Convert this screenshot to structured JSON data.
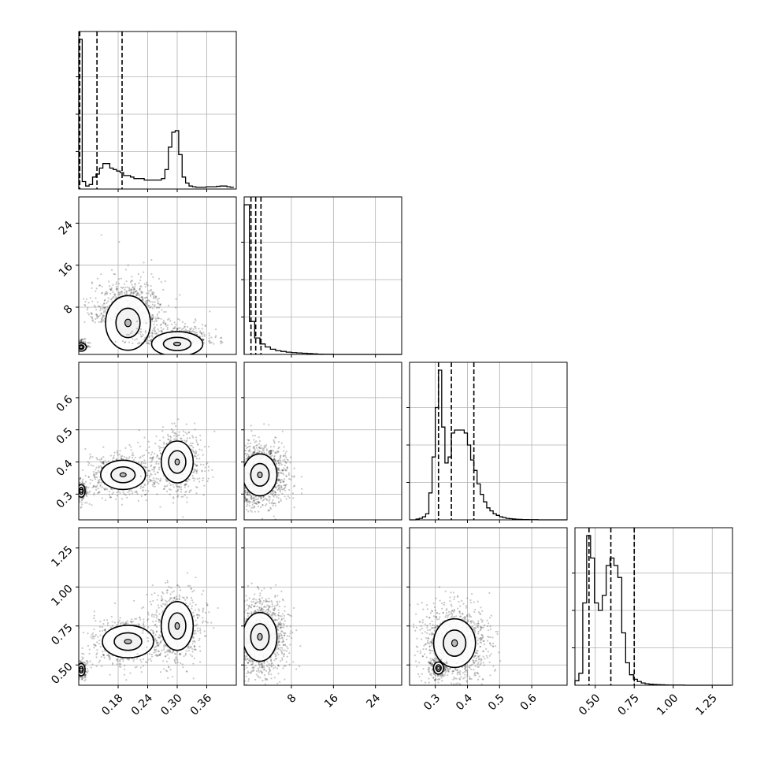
{
  "chart_data": {
    "type": "corner",
    "title": "",
    "grid": true,
    "parameters": [
      {
        "name": "",
        "range": [
          0.1,
          0.42
        ],
        "ticks": [
          0.18,
          0.24,
          0.3,
          0.36
        ],
        "tick_labels": [
          "0.18",
          "0.24",
          "0.30",
          "0.36"
        ],
        "quantiles": [
          0.102,
          0.137,
          0.188
        ]
      },
      {
        "name": "",
        "range": [
          -1,
          29
        ],
        "ticks": [
          8,
          16,
          24
        ],
        "tick_labels": [
          "8",
          "16",
          "24"
        ],
        "quantiles": [
          0.3,
          1.2,
          2.2
        ]
      },
      {
        "name": "",
        "range": [
          0.22,
          0.71
        ],
        "ticks": [
          0.3,
          0.4,
          0.5,
          0.6
        ],
        "tick_labels": [
          "0.3",
          "0.4",
          "0.5",
          "0.6"
        ],
        "quantiles": [
          0.31,
          0.35,
          0.42
        ]
      },
      {
        "name": "",
        "range": [
          0.37,
          1.38
        ],
        "ticks": [
          0.5,
          0.75,
          1.0,
          1.25
        ],
        "tick_labels": [
          "0.50",
          "0.75",
          "1.00",
          "1.25"
        ],
        "quantiles": [
          0.46,
          0.6,
          0.75
        ]
      }
    ],
    "histograms": [
      {
        "param": 0,
        "bin_edges": [
          0.1,
          0.107,
          0.114,
          0.121,
          0.128,
          0.135,
          0.142,
          0.149,
          0.156,
          0.163,
          0.17,
          0.177,
          0.184,
          0.191,
          0.198,
          0.205,
          0.212,
          0.219,
          0.226,
          0.233,
          0.24,
          0.247,
          0.254,
          0.261,
          0.268,
          0.275,
          0.282,
          0.289,
          0.296,
          0.303,
          0.31,
          0.317,
          0.324,
          0.331,
          0.338,
          0.345,
          0.352,
          0.359,
          0.366,
          0.373,
          0.38,
          0.387,
          0.394,
          0.401,
          0.408,
          0.415
        ],
        "counts": [
          1.0,
          0.05,
          0.02,
          0.03,
          0.08,
          0.1,
          0.14,
          0.17,
          0.17,
          0.14,
          0.13,
          0.12,
          0.11,
          0.09,
          0.09,
          0.08,
          0.07,
          0.07,
          0.07,
          0.06,
          0.06,
          0.06,
          0.06,
          0.06,
          0.07,
          0.13,
          0.28,
          0.38,
          0.39,
          0.23,
          0.08,
          0.04,
          0.02,
          0.015,
          0.012,
          0.012,
          0.012,
          0.015,
          0.015,
          0.015,
          0.018,
          0.02,
          0.02,
          0.015,
          0.012
        ]
      },
      {
        "param": 1,
        "bin_edges": [
          -1,
          0,
          1,
          2,
          3,
          4,
          5,
          6,
          7,
          8,
          9,
          10,
          11,
          12,
          13,
          14,
          15,
          16,
          17,
          18,
          19,
          20,
          21,
          22,
          23,
          24,
          25,
          26,
          27,
          28,
          29
        ],
        "counts": [
          1.0,
          0.22,
          0.11,
          0.07,
          0.05,
          0.035,
          0.025,
          0.02,
          0.015,
          0.012,
          0.01,
          0.008,
          0.006,
          0.004,
          0.002,
          0.001,
          0.001,
          0,
          0,
          0,
          0,
          0,
          0,
          0,
          0,
          0,
          0,
          0,
          0,
          0
        ]
      },
      {
        "param": 2,
        "bin_edges": [
          0.22,
          0.23,
          0.24,
          0.25,
          0.26,
          0.27,
          0.28,
          0.29,
          0.3,
          0.31,
          0.32,
          0.33,
          0.34,
          0.35,
          0.36,
          0.37,
          0.38,
          0.39,
          0.4,
          0.41,
          0.42,
          0.43,
          0.44,
          0.45,
          0.46,
          0.47,
          0.48,
          0.49,
          0.5,
          0.51,
          0.52,
          0.53,
          0.54,
          0.55,
          0.56,
          0.57,
          0.58,
          0.59,
          0.6,
          0.61,
          0.62,
          0.63,
          0.64,
          0.65,
          0.66,
          0.67,
          0.68,
          0.69,
          0.7,
          0.71
        ],
        "counts": [
          0,
          0,
          0.005,
          0.01,
          0.02,
          0.04,
          0.18,
          0.42,
          0.75,
          1.0,
          0.62,
          0.38,
          0.42,
          0.58,
          0.6,
          0.6,
          0.6,
          0.58,
          0.5,
          0.4,
          0.33,
          0.24,
          0.17,
          0.12,
          0.08,
          0.06,
          0.04,
          0.03,
          0.02,
          0.015,
          0.01,
          0.008,
          0.006,
          0.004,
          0.003,
          0.002,
          0.002,
          0.001,
          0.001,
          0.001,
          0,
          0,
          0,
          0,
          0,
          0,
          0,
          0,
          0
        ]
      },
      {
        "param": 3,
        "bin_edges": [
          0.37,
          0.395,
          0.42,
          0.445,
          0.47,
          0.495,
          0.52,
          0.545,
          0.57,
          0.595,
          0.62,
          0.645,
          0.67,
          0.695,
          0.72,
          0.745,
          0.77,
          0.795,
          0.82,
          0.845,
          0.87,
          0.895,
          0.92,
          0.945,
          0.97,
          0.995,
          1.02,
          1.045,
          1.07,
          1.095,
          1.12,
          1.145,
          1.17,
          1.195,
          1.22,
          1.245,
          1.27,
          1.295,
          1.32,
          1.345,
          1.37
        ],
        "counts": [
          0.03,
          0.08,
          0.55,
          1.0,
          0.85,
          0.55,
          0.5,
          0.6,
          0.8,
          0.85,
          0.8,
          0.72,
          0.35,
          0.15,
          0.07,
          0.04,
          0.025,
          0.015,
          0.01,
          0.007,
          0.005,
          0.004,
          0.003,
          0.002,
          0.001,
          0.001,
          0.001,
          0.001,
          0,
          0,
          0,
          0,
          0,
          0,
          0,
          0,
          0,
          0,
          0,
          0
        ]
      }
    ],
    "scatter_clouds": [
      {
        "x_param": 0,
        "y_param": 1,
        "clusters": [
          {
            "center": [
              0.2,
              5.0
            ],
            "spread": [
              0.035,
              4.0
            ],
            "weight": 0.55
          },
          {
            "center": [
              0.3,
              1.0
            ],
            "spread": [
              0.04,
              1.8
            ],
            "weight": 0.35
          },
          {
            "center": [
              0.105,
              0.4
            ],
            "spread": [
              0.008,
              0.6
            ],
            "weight": 0.1
          }
        ]
      },
      {
        "x_param": 0,
        "y_param": 2,
        "clusters": [
          {
            "center": [
              0.19,
              0.36
            ],
            "spread": [
              0.035,
              0.035
            ],
            "weight": 0.4
          },
          {
            "center": [
              0.3,
              0.4
            ],
            "spread": [
              0.025,
              0.05
            ],
            "weight": 0.45
          },
          {
            "center": [
              0.105,
              0.31
            ],
            "spread": [
              0.006,
              0.015
            ],
            "weight": 0.15
          }
        ]
      },
      {
        "x_param": 0,
        "y_param": 3,
        "clusters": [
          {
            "center": [
              0.2,
              0.65
            ],
            "spread": [
              0.04,
              0.08
            ],
            "weight": 0.4
          },
          {
            "center": [
              0.3,
              0.75
            ],
            "spread": [
              0.025,
              0.12
            ],
            "weight": 0.45
          },
          {
            "center": [
              0.105,
              0.47
            ],
            "spread": [
              0.006,
              0.03
            ],
            "weight": 0.15
          }
        ]
      },
      {
        "x_param": 1,
        "y_param": 2,
        "clusters": [
          {
            "center": [
              2.0,
              0.36
            ],
            "spread": [
              2.5,
              0.05
            ],
            "weight": 1.0
          }
        ]
      },
      {
        "x_param": 1,
        "y_param": 3,
        "clusters": [
          {
            "center": [
              2.0,
              0.68
            ],
            "spread": [
              2.5,
              0.12
            ],
            "weight": 1.0
          }
        ]
      },
      {
        "x_param": 2,
        "y_param": 3,
        "clusters": [
          {
            "center": [
              0.36,
              0.64
            ],
            "spread": [
              0.05,
              0.12
            ],
            "weight": 0.85
          },
          {
            "center": [
              0.31,
              0.48
            ],
            "spread": [
              0.012,
              0.03
            ],
            "weight": 0.15
          }
        ]
      }
    ]
  }
}
